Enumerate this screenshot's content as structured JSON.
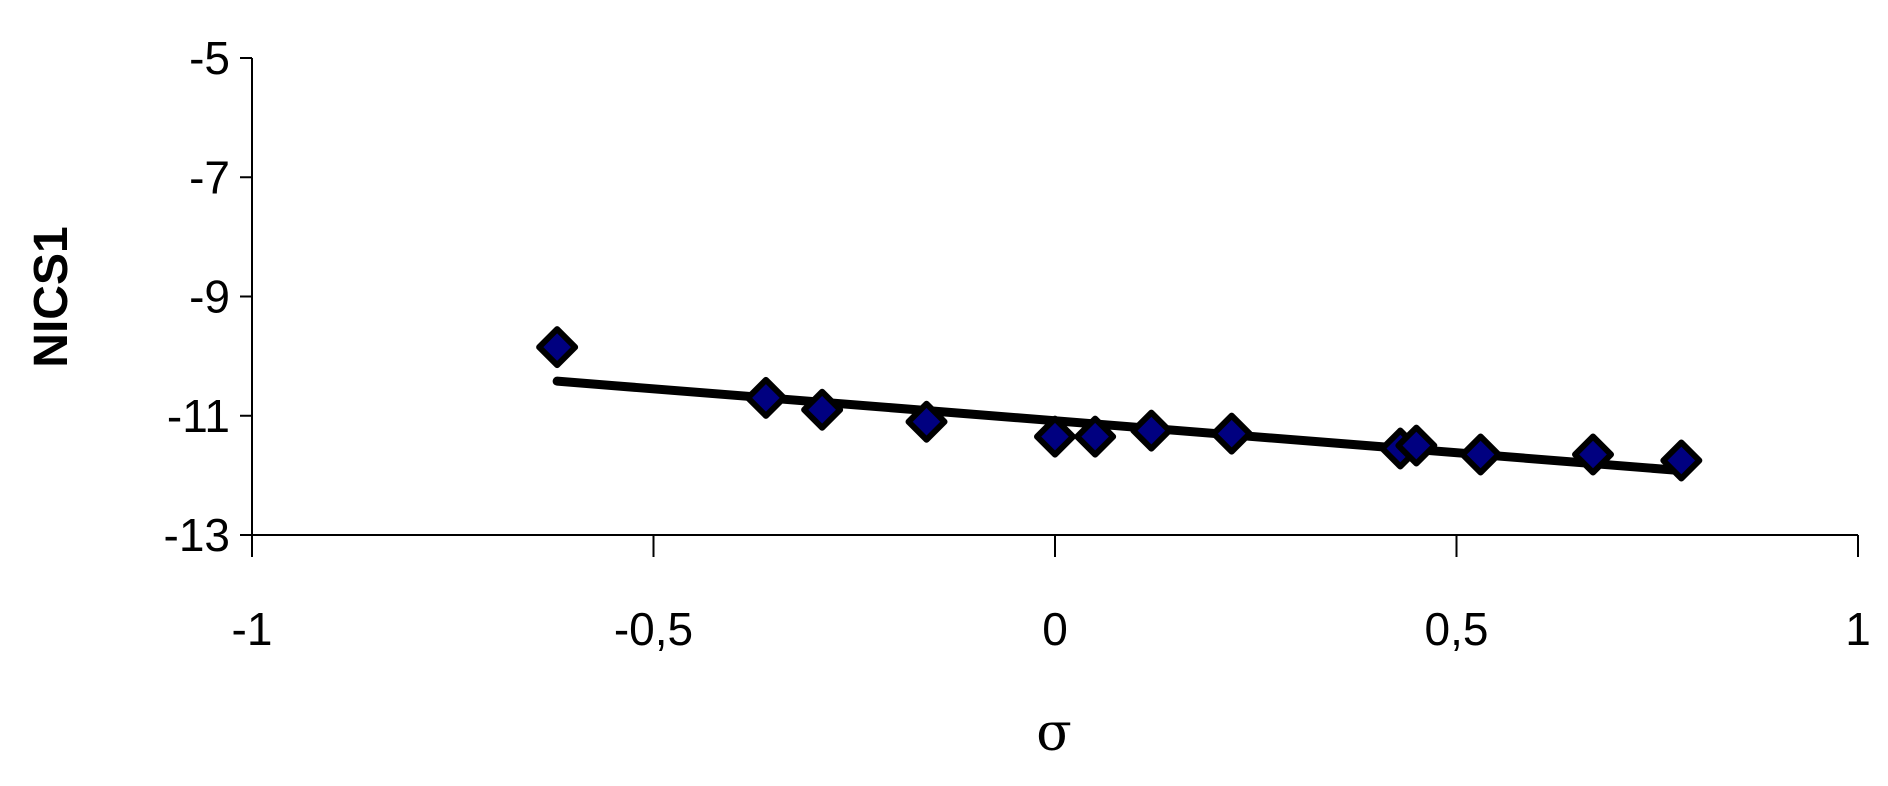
{
  "chart_data": {
    "type": "scatter",
    "title": "",
    "xlabel": "σ",
    "ylabel": "NICS1",
    "xlim": [
      -1,
      1
    ],
    "ylim": [
      -13,
      -5
    ],
    "x_ticks": [
      -1,
      -0.5,
      0,
      0.5,
      1
    ],
    "x_tick_labels": [
      "-1",
      "-0,5",
      "0",
      "0,5",
      "1"
    ],
    "y_ticks": [
      -5,
      -7,
      -9,
      -11,
      -13
    ],
    "y_tick_labels": [
      "-5",
      "-7",
      "-9",
      "-11",
      "-13"
    ],
    "grid": false,
    "legend": "none",
    "series": [
      {
        "x": [
          -0.62,
          -0.36,
          -0.29,
          -0.16,
          0.0,
          0.05,
          0.12,
          0.22,
          0.43,
          0.45,
          0.53,
          0.67,
          0.78
        ],
        "y": [
          -9.85,
          -10.7,
          -10.9,
          -11.1,
          -11.35,
          -11.35,
          -11.25,
          -11.3,
          -11.55,
          -11.5,
          -11.65,
          -11.65,
          -11.75
        ],
        "marker": "diamond",
        "color": "#000080"
      }
    ],
    "trendline": {
      "x": [
        -0.62,
        0.78
      ],
      "y": [
        -10.42,
        -11.92
      ],
      "color": "#000000"
    }
  }
}
